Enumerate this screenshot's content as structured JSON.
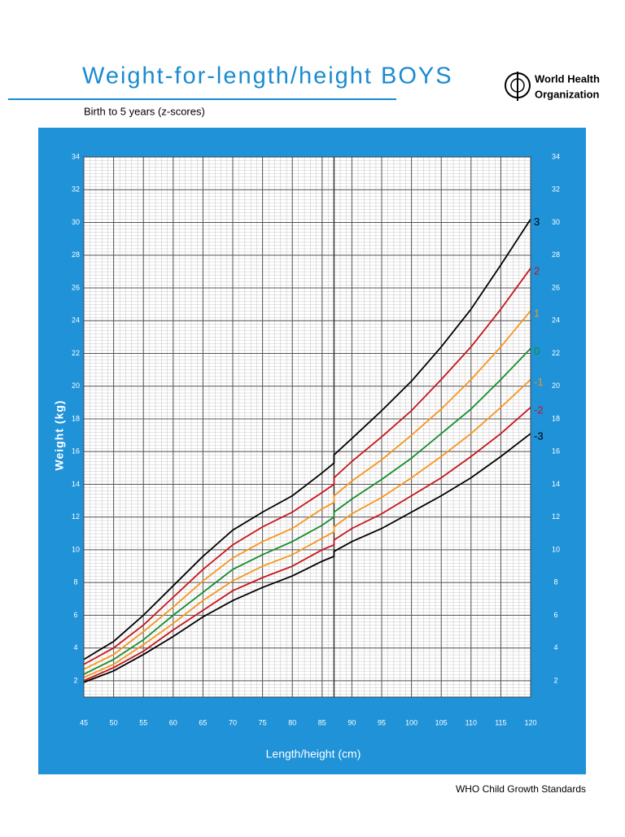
{
  "chart_data": {
    "type": "line",
    "title": "Weight-for-length/height  BOYS",
    "subtitle": "Birth to 5 years (z-scores)",
    "x_label": "Length/height (cm)",
    "y_label": "Weight (kg)",
    "xlim": [
      45,
      120
    ],
    "ylim": [
      1,
      34
    ],
    "xticks": [
      45,
      50,
      55,
      60,
      65,
      70,
      75,
      80,
      85,
      90,
      95,
      100,
      105,
      110,
      115,
      120
    ],
    "yticks": [
      2,
      4,
      6,
      8,
      10,
      12,
      14,
      16,
      18,
      20,
      22,
      24,
      26,
      28,
      30,
      32,
      34
    ],
    "grid": true,
    "x": [
      45,
      50,
      55,
      60,
      65,
      70,
      75,
      80,
      85,
      87,
      87,
      90,
      95,
      100,
      105,
      110,
      115,
      120
    ],
    "series": [
      {
        "name": "3",
        "color": "#000000",
        "values": [
          3.3,
          4.4,
          6.0,
          7.8,
          9.6,
          11.2,
          12.3,
          13.3,
          14.7,
          15.3,
          15.8,
          16.8,
          18.5,
          20.3,
          22.4,
          24.7,
          27.4,
          30.2
        ]
      },
      {
        "name": "2",
        "color": "#c4161c",
        "values": [
          3.0,
          4.0,
          5.4,
          7.1,
          8.8,
          10.3,
          11.4,
          12.3,
          13.5,
          14.0,
          14.4,
          15.4,
          16.9,
          18.5,
          20.4,
          22.4,
          24.7,
          27.2
        ]
      },
      {
        "name": "1",
        "color": "#f5961e",
        "values": [
          2.7,
          3.6,
          5.0,
          6.5,
          8.1,
          9.5,
          10.5,
          11.3,
          12.5,
          12.9,
          13.3,
          14.2,
          15.5,
          17.0,
          18.6,
          20.4,
          22.4,
          24.6
        ]
      },
      {
        "name": "0",
        "color": "#168c2c",
        "values": [
          2.4,
          3.3,
          4.5,
          6.0,
          7.4,
          8.8,
          9.7,
          10.5,
          11.5,
          12.0,
          12.3,
          13.1,
          14.3,
          15.6,
          17.1,
          18.6,
          20.4,
          22.3
        ]
      },
      {
        "name": "-1",
        "color": "#f5961e",
        "values": [
          2.2,
          3.0,
          4.2,
          5.5,
          6.9,
          8.1,
          9.0,
          9.7,
          10.7,
          11.1,
          11.4,
          12.2,
          13.2,
          14.4,
          15.7,
          17.1,
          18.7,
          20.4
        ]
      },
      {
        "name": "-2",
        "color": "#c4161c",
        "values": [
          2.0,
          2.8,
          3.8,
          5.1,
          6.3,
          7.5,
          8.3,
          9.0,
          10.0,
          10.3,
          10.6,
          11.3,
          12.2,
          13.3,
          14.4,
          15.7,
          17.1,
          18.7
        ]
      },
      {
        "name": "-3",
        "color": "#000000",
        "values": [
          1.9,
          2.6,
          3.6,
          4.7,
          5.9,
          6.9,
          7.7,
          8.4,
          9.3,
          9.6,
          9.9,
          10.5,
          11.3,
          12.3,
          13.3,
          14.4,
          15.7,
          17.1
        ]
      }
    ]
  },
  "logo_text": [
    "World Health",
    "Organization"
  ],
  "footer": "WHO Child Growth Standards"
}
